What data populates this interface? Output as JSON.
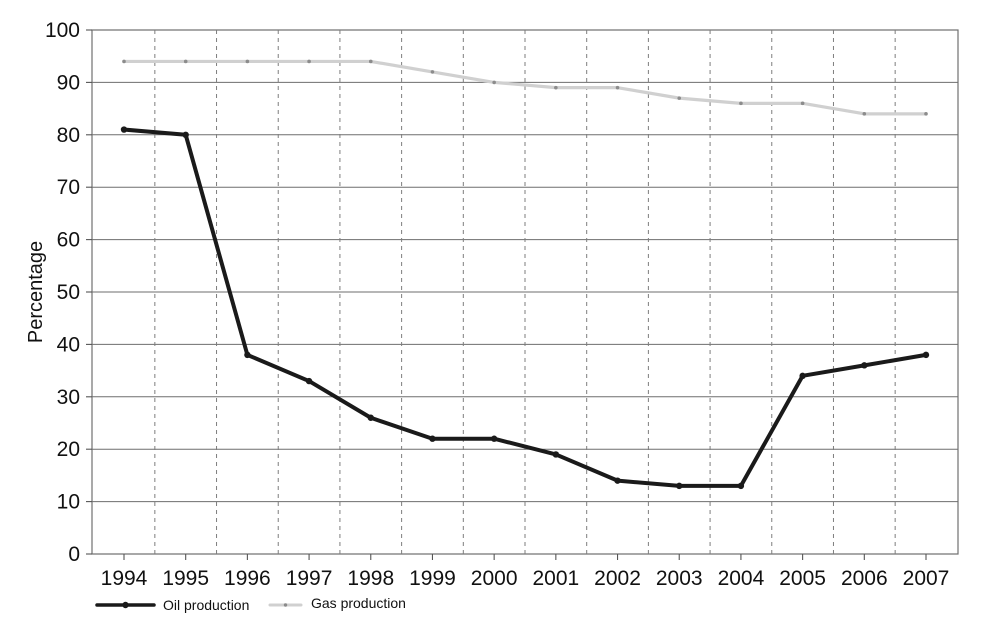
{
  "chart_data": {
    "type": "line",
    "title": "",
    "xlabel": "",
    "ylabel": "Percentage",
    "ylim": [
      0,
      100
    ],
    "y_ticks": [
      0,
      10,
      20,
      30,
      40,
      50,
      60,
      70,
      80,
      90,
      100
    ],
    "categories": [
      "1994",
      "1995",
      "1996",
      "1997",
      "1998",
      "1999",
      "2000",
      "2001",
      "2002",
      "2003",
      "2004",
      "2005",
      "2006",
      "2007"
    ],
    "grid": {
      "horizontal": "solid",
      "vertical": "dashed"
    },
    "legend_position": "bottom-left",
    "series": [
      {
        "name": "Oil production",
        "color": "#1a1a1a",
        "style": "thick",
        "values": [
          81,
          80,
          38,
          33,
          26,
          22,
          22,
          19,
          14,
          13,
          13,
          34,
          36,
          38
        ]
      },
      {
        "name": "Gas production",
        "color": "#d0d0d0",
        "style": "thin",
        "values": [
          94,
          94,
          94,
          94,
          94,
          92,
          90,
          89,
          89,
          87,
          86,
          86,
          84,
          84
        ]
      }
    ]
  }
}
